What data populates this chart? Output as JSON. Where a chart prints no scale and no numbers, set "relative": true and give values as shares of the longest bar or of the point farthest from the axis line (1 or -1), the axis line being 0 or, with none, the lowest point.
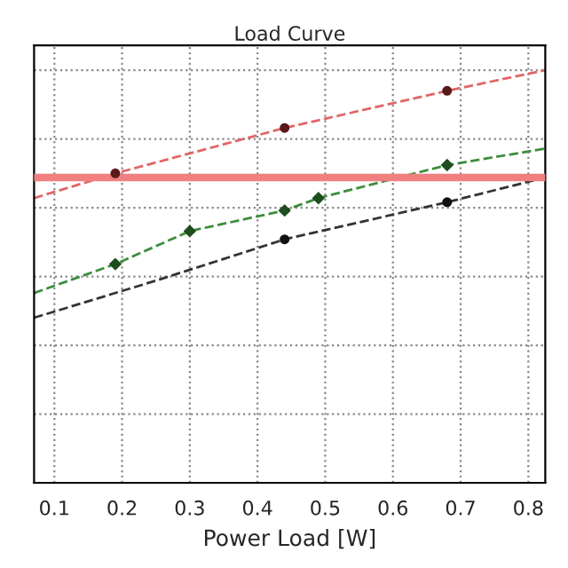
{
  "chart_data": {
    "type": "scatter",
    "title": "Load Curve",
    "xlabel": "Power Load [W]",
    "relative": true,
    "xlim": [
      0.07,
      0.825
    ],
    "xticks": [
      0.1,
      0.2,
      0.3,
      0.4,
      0.5,
      0.6,
      0.7,
      0.8
    ],
    "grid": true,
    "legend": false,
    "series": [
      {
        "type": "line",
        "color": "#e06666",
        "line_style": "dashed",
        "marker": "none",
        "x": [
          0.07,
          0.19,
          0.44,
          0.68,
          0.825
        ],
        "values": [
          0.69,
          0.75,
          0.86,
          0.95,
          1.0
        ]
      },
      {
        "type": "line",
        "color": "#3c8c3c",
        "line_style": "dashed",
        "marker": "none",
        "x": [
          0.07,
          0.19,
          0.3,
          0.44,
          0.49,
          0.68,
          0.825
        ],
        "values": [
          0.46,
          0.53,
          0.61,
          0.66,
          0.69,
          0.77,
          0.81
        ]
      },
      {
        "type": "line",
        "color": "#333333",
        "line_style": "dashed",
        "marker": "none",
        "x": [
          0.07,
          0.25,
          0.44,
          0.68,
          0.825
        ],
        "values": [
          0.4,
          0.49,
          0.59,
          0.68,
          0.74
        ]
      },
      {
        "color": "#5a1a1a",
        "marker": "circle",
        "x": [
          0.19,
          0.44,
          0.68
        ],
        "values": [
          0.75,
          0.86,
          0.95
        ]
      },
      {
        "color": "#1e4d1e",
        "marker": "diamond",
        "x": [
          0.19,
          0.3,
          0.44,
          0.49,
          0.68
        ],
        "values": [
          0.53,
          0.61,
          0.66,
          0.69,
          0.77
        ]
      },
      {
        "color": "#111111",
        "marker": "circle",
        "x": [
          0.44,
          0.68
        ],
        "values": [
          0.59,
          0.68
        ]
      }
    ],
    "ref_lines": [
      {
        "axis": "y",
        "value": 0.74,
        "color": "#f08080"
      }
    ]
  }
}
